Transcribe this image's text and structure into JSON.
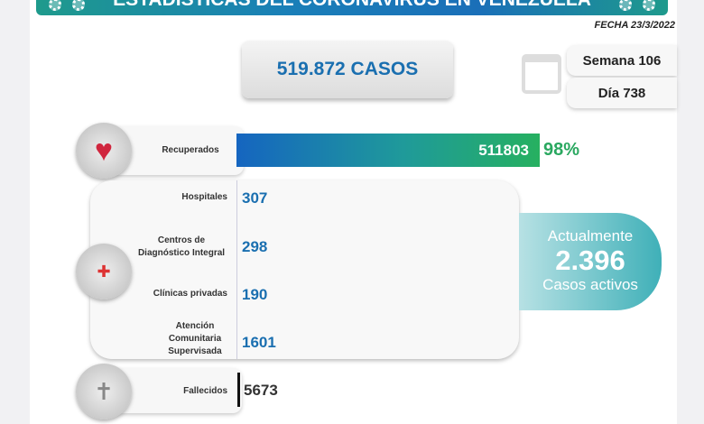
{
  "header": {
    "title": "ESTADISTICAS DEL CORONAVIRUS EN VENEZUELA",
    "date": "FECHA 23/3/2022"
  },
  "total_cases": "519.872 CASOS",
  "week": "Semana 106",
  "day": "Día 738",
  "recovered": {
    "label": "Recuperados",
    "value": "511803",
    "percent": "98%"
  },
  "locations": [
    {
      "label": "Hospitales",
      "value": "307"
    },
    {
      "label": "Centros de Diagnóstico Integral",
      "value": "298"
    },
    {
      "label": "Clínicas privadas",
      "value": "190"
    },
    {
      "label": "Atención Comunitaria Supervisada",
      "value": "1601"
    }
  ],
  "active": {
    "line1": "Actualmente",
    "value": "2.396",
    "line2": "Casos activos"
  },
  "deaths": {
    "label": "Fallecidos",
    "value": "5673"
  },
  "colors": {
    "accent": "#1a6fb0",
    "green": "#2aa860",
    "teal": "#3fb0b8"
  }
}
